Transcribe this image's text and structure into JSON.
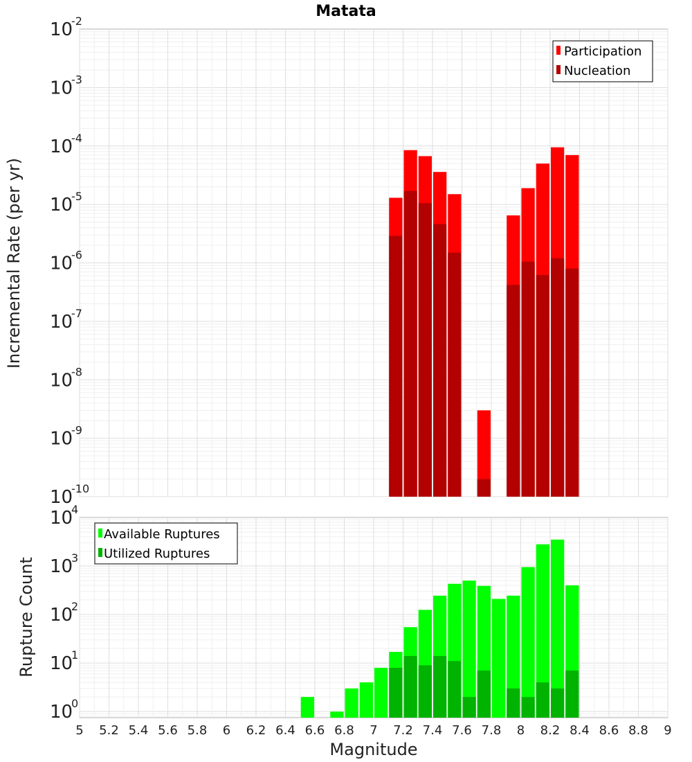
{
  "chart_data": [
    {
      "type": "bar",
      "title": "Matata",
      "xlabel": "Magnitude",
      "ylabel": "Incremental Rate (per yr)",
      "yscale": "log",
      "ylim": [
        1e-10,
        0.01
      ],
      "xlim": [
        5,
        9
      ],
      "ytick_bases": [
        "10",
        "10",
        "10",
        "10",
        "10",
        "10",
        "10",
        "10",
        "10"
      ],
      "ytick_exponents": [
        "-10",
        "-9",
        "-8",
        "-7",
        "-6",
        "-5",
        "-4",
        "-3",
        "-2"
      ],
      "ytick_values": [
        1e-10,
        1e-09,
        1e-08,
        1e-07,
        1e-06,
        1e-05,
        0.0001,
        0.001,
        0.01
      ],
      "legend": {
        "position": "top-right",
        "entries": [
          "Participation",
          "Nucleation"
        ]
      },
      "series": [
        {
          "name": "Participation",
          "color": "#ff0000",
          "x": [
            7.15,
            7.25,
            7.35,
            7.45,
            7.55,
            7.75,
            7.95,
            8.05,
            8.15,
            8.25,
            8.35
          ],
          "values": [
            1.3e-05,
            8.5e-05,
            6.7e-05,
            3.6e-05,
            1.5e-05,
            3e-09,
            6.5e-06,
            1.9e-05,
            5e-05,
            9.5e-05,
            7e-05
          ]
        },
        {
          "name": "Nucleation",
          "color": "#b30000",
          "x": [
            7.15,
            7.25,
            7.35,
            7.45,
            7.55,
            7.75,
            7.95,
            8.05,
            8.15,
            8.25,
            8.35
          ],
          "values": [
            2.9e-06,
            1.7e-05,
            1.05e-05,
            4.6e-06,
            1.5e-06,
            2e-10,
            4.2e-07,
            1.05e-06,
            6.2e-07,
            1.2e-06,
            8e-07
          ]
        }
      ]
    },
    {
      "type": "bar",
      "xlabel": "Magnitude",
      "ylabel": "Rupture Count",
      "yscale": "log",
      "ylim": [
        0.75,
        10000
      ],
      "xlim": [
        5,
        9
      ],
      "ytick_bases": [
        "10",
        "10",
        "10",
        "10",
        "10"
      ],
      "ytick_exponents": [
        "0",
        "1",
        "2",
        "3",
        "4"
      ],
      "ytick_values": [
        1,
        10,
        100,
        1000,
        10000
      ],
      "x_tick_labels": [
        "5",
        "5.2",
        "5.4",
        "5.6",
        "5.8",
        "6",
        "6.2",
        "6.4",
        "6.6",
        "6.8",
        "7",
        "7.2",
        "7.4",
        "7.6",
        "7.8",
        "8",
        "8.2",
        "8.4",
        "8.6",
        "8.8",
        "9"
      ],
      "x_tick_values": [
        5,
        5.2,
        5.4,
        5.6,
        5.8,
        6,
        6.2,
        6.4,
        6.6,
        6.8,
        7,
        7.2,
        7.4,
        7.6,
        7.8,
        8,
        8.2,
        8.4,
        8.6,
        8.8,
        9
      ],
      "legend": {
        "position": "top-left",
        "entries": [
          "Available Ruptures",
          "Utilized Ruptures"
        ]
      },
      "series": [
        {
          "name": "Available Ruptures",
          "color": "#00ff00",
          "x": [
            6.55,
            6.75,
            6.85,
            6.95,
            7.05,
            7.15,
            7.25,
            7.35,
            7.45,
            7.55,
            7.65,
            7.75,
            7.85,
            7.95,
            8.05,
            8.15,
            8.25,
            8.35
          ],
          "values": [
            2,
            1,
            3,
            4,
            8,
            17,
            55,
            125,
            245,
            430,
            500,
            390,
            210,
            245,
            950,
            2800,
            3500,
            400
          ]
        },
        {
          "name": "Utilized Ruptures",
          "color": "#00b300",
          "x": [
            7.15,
            7.25,
            7.35,
            7.45,
            7.55,
            7.65,
            7.75,
            7.85,
            7.95,
            8.05,
            8.15,
            8.25,
            8.35
          ],
          "values": [
            8,
            14,
            9,
            14,
            11,
            2,
            7,
            0,
            3,
            2,
            4,
            3,
            7
          ]
        }
      ]
    }
  ]
}
